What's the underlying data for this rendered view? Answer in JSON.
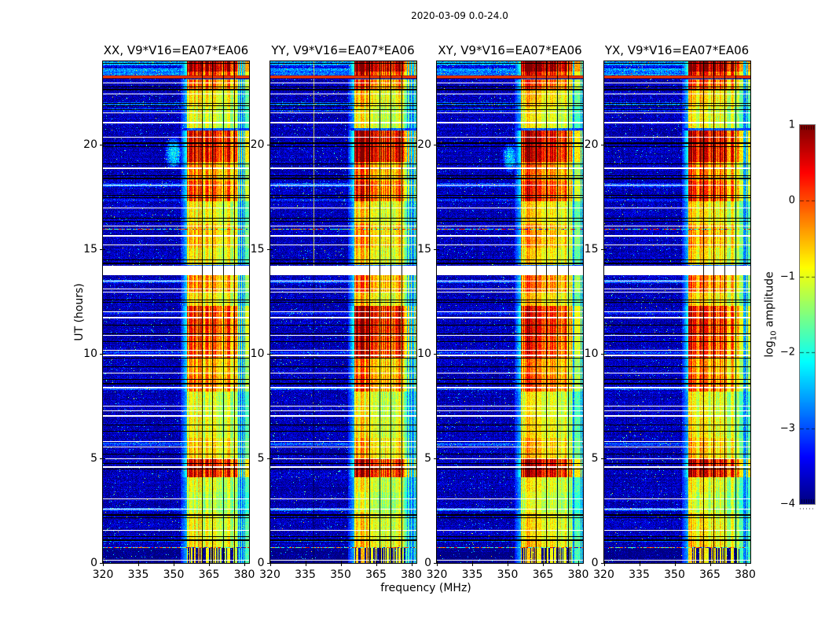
{
  "figure": {
    "title": "2020-03-09 0.0-24.0",
    "xlabel": "frequency (MHz)",
    "ylabel": "UT (hours)"
  },
  "colorbar": {
    "label_pre": "log",
    "label_sub": "10",
    "label_post": " amplitude",
    "tick_labels": [
      "1",
      "0",
      "−1",
      "−2",
      "−3",
      "−4"
    ],
    "tick_values": [
      1,
      0,
      -1,
      -2,
      -3,
      -4
    ],
    "vmin": -4,
    "vmax": 1,
    "colormap": "jet"
  },
  "chart_data": {
    "type": "heatmap",
    "title": "2020-03-09 0.0-24.0",
    "xlabel": "frequency (MHz)",
    "ylabel": "UT (hours)",
    "value_label": "log10 amplitude",
    "value_range": [
      -4,
      1
    ],
    "colormap": "jet",
    "x_range_mhz": [
      320,
      382
    ],
    "y_range_hours": [
      0,
      24
    ],
    "x_ticks": [
      320,
      335,
      350,
      365,
      380
    ],
    "y_ticks": [
      0,
      5,
      10,
      15,
      20
    ],
    "panels": [
      {
        "label": "XX, V9*V16=EA07*EA06",
        "pol": "XX",
        "seed": 101,
        "boost_blocks": [],
        "blob": {
          "f": 350,
          "ut": 19.6,
          "df": 4.0,
          "dt": 0.9,
          "amp": 1.6
        },
        "vline_mhz": null
      },
      {
        "label": "YY, V9*V16=EA07*EA06",
        "pol": "YY",
        "seed": 202,
        "boost_blocks": [
          [
            9.8,
            12.3,
            1.12
          ],
          [
            19.2,
            20.7,
            1.08
          ]
        ],
        "blob": null,
        "vline_mhz": 338.3
      },
      {
        "label": "XY, V9*V16=EA07*EA06",
        "pol": "XY",
        "seed": 303,
        "boost_blocks": [],
        "blob": {
          "f": 351,
          "ut": 19.4,
          "df": 3.5,
          "dt": 0.8,
          "amp": 1.5
        },
        "vline_mhz": null
      },
      {
        "label": "YX, V9*V16=EA07*EA06",
        "pol": "YX",
        "seed": 404,
        "boost_blocks": [],
        "blob": null,
        "vline_mhz": null
      }
    ],
    "features": {
      "background_level": -3.75,
      "noise_sigma": 0.3,
      "rfi_band_mhz": [
        355.7,
        377.5
      ],
      "band_edge_soft_mhz": 353.0,
      "band_far_mhz": [
        377.5,
        382
      ],
      "band_subdividers_mhz": [
        362.0,
        366.4,
        370.9,
        375.5
      ],
      "band_intensity_blocks": [
        [
          23.5,
          24.0,
          1.12
        ],
        [
          23.3,
          23.5,
          0.9
        ],
        [
          22.6,
          23.15,
          0.8
        ],
        [
          21.8,
          22.6,
          0.62
        ],
        [
          20.8,
          21.8,
          0.55
        ],
        [
          19.2,
          20.7,
          0.97
        ],
        [
          18.3,
          19.2,
          0.75
        ],
        [
          17.3,
          18.3,
          0.85
        ],
        [
          16.2,
          17.3,
          0.6
        ],
        [
          15.1,
          16.2,
          0.68
        ],
        [
          14.25,
          15.1,
          0.6
        ],
        [
          12.95,
          13.78,
          0.75
        ],
        [
          12.3,
          12.95,
          0.62
        ],
        [
          11.0,
          12.3,
          0.9
        ],
        [
          9.8,
          11.0,
          0.85
        ],
        [
          9.0,
          9.8,
          0.72
        ],
        [
          8.2,
          9.0,
          0.78
        ],
        [
          7.0,
          8.2,
          0.55
        ],
        [
          6.0,
          7.0,
          0.58
        ],
        [
          5.0,
          6.0,
          0.65
        ],
        [
          4.1,
          5.0,
          0.97
        ],
        [
          3.4,
          4.1,
          0.55
        ],
        [
          2.4,
          3.4,
          0.5
        ],
        [
          1.1,
          2.4,
          0.58
        ],
        [
          0.72,
          1.1,
          0.62
        ],
        [
          0.0,
          0.72,
          0.55
        ]
      ],
      "white_gap_ut": [
        13.78,
        14.22
      ],
      "red_line_ut": 23.3,
      "speckle_rows_ut": [
        15.97,
        0.76
      ],
      "white_lines": [
        [
          23.0,
          1
        ],
        [
          22.45,
          1
        ],
        [
          21.55,
          1
        ],
        [
          21.1,
          2
        ],
        [
          20.4,
          1
        ],
        [
          18.92,
          2
        ],
        [
          18.1,
          1
        ],
        [
          17.0,
          1
        ],
        [
          16.15,
          1
        ],
        [
          15.7,
          2
        ],
        [
          15.25,
          1
        ],
        [
          13.52,
          1
        ],
        [
          13.12,
          1
        ],
        [
          12.97,
          1
        ],
        [
          12.02,
          1
        ],
        [
          11.78,
          2
        ],
        [
          10.92,
          1
        ],
        [
          10.2,
          1
        ],
        [
          9.95,
          2
        ],
        [
          9.12,
          1
        ],
        [
          8.42,
          2
        ],
        [
          7.52,
          1
        ],
        [
          7.3,
          1
        ],
        [
          7.08,
          2
        ],
        [
          5.82,
          1
        ],
        [
          5.58,
          1
        ],
        [
          5.02,
          1
        ],
        [
          4.62,
          2
        ],
        [
          3.08,
          1
        ],
        [
          2.58,
          1
        ],
        [
          1.57,
          1
        ],
        [
          0.14,
          1
        ]
      ],
      "black_lines": [
        [
          23.93,
          1
        ],
        [
          22.8,
          1
        ],
        [
          22.68,
          2
        ],
        [
          22.02,
          1
        ],
        [
          21.9,
          1
        ],
        [
          21.72,
          1
        ],
        [
          20.12,
          2
        ],
        [
          19.92,
          1
        ],
        [
          19.12,
          1
        ],
        [
          18.55,
          1
        ],
        [
          18.42,
          2
        ],
        [
          17.62,
          1
        ],
        [
          17.5,
          1
        ],
        [
          16.52,
          1
        ],
        [
          16.38,
          1
        ],
        [
          14.52,
          1
        ],
        [
          14.38,
          2
        ],
        [
          12.62,
          1
        ],
        [
          12.48,
          1
        ],
        [
          11.4,
          1
        ],
        [
          11.0,
          1
        ],
        [
          10.6,
          1
        ],
        [
          10.2,
          1
        ],
        [
          9.8,
          1
        ],
        [
          9.42,
          1
        ],
        [
          8.82,
          1
        ],
        [
          8.6,
          2
        ],
        [
          6.62,
          1
        ],
        [
          6.32,
          1
        ],
        [
          5.22,
          1
        ],
        [
          4.78,
          1
        ],
        [
          4.52,
          1
        ],
        [
          2.32,
          2
        ],
        [
          2.18,
          1
        ],
        [
          1.28,
          1
        ],
        [
          1.12,
          2
        ]
      ],
      "bright_rows": [
        [
          23.55,
          24.0,
          1.15
        ],
        [
          23.3,
          23.55,
          0.95
        ],
        [
          21.9,
          22.06,
          0.85
        ],
        [
          21.6,
          21.75,
          0.6
        ],
        [
          18.0,
          18.16,
          0.75
        ],
        [
          17.3,
          17.42,
          0.55
        ],
        [
          13.38,
          13.55,
          0.8
        ],
        [
          11.9,
          12.0,
          0.55
        ],
        [
          10.0,
          10.12,
          0.65
        ],
        [
          8.28,
          8.42,
          0.7
        ],
        [
          5.6,
          5.75,
          0.75
        ],
        [
          2.5,
          2.65,
          0.8
        ],
        [
          1.0,
          1.1,
          0.65
        ]
      ],
      "dark_rows": [
        [
          23.68,
          23.8
        ]
      ],
      "bottom_dark_block_ut": 0.72
    }
  }
}
